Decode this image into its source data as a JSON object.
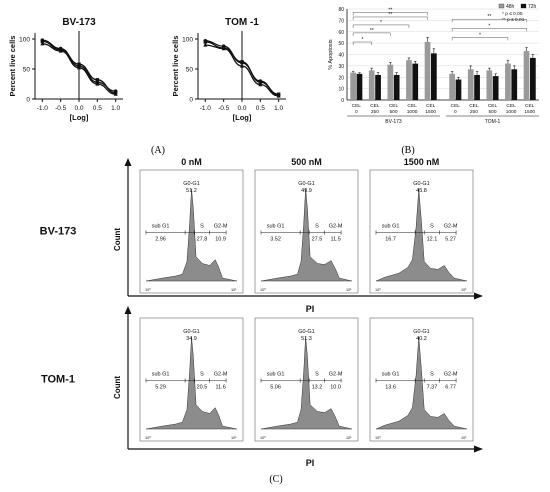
{
  "panel_labels": {
    "a": "(A)",
    "b": "(B)",
    "c": "(C)"
  },
  "chart_data": [
    {
      "type": "line",
      "title": "BV-173",
      "xlabel": "[Log]",
      "ylabel": "Percent live cells",
      "xticks": [
        "-1.0",
        "-0.5",
        "0.0",
        "0.5",
        "1.0"
      ],
      "yticks": [
        "0",
        "50",
        "100"
      ],
      "xlim": [
        -1.2,
        1.2
      ],
      "ylim": [
        0,
        110
      ],
      "series": [
        {
          "x": [
            -1.0,
            -0.5,
            0.0,
            0.5,
            1.0
          ],
          "y": [
            98,
            84,
            55,
            28,
            13
          ]
        },
        {
          "x": [
            -1.0,
            -0.5,
            0.0,
            0.5,
            1.0
          ],
          "y": [
            96,
            82,
            58,
            32,
            10
          ]
        },
        {
          "x": [
            -1.0,
            -0.5,
            0.0,
            0.5,
            1.0
          ],
          "y": [
            92,
            80,
            52,
            25,
            8
          ]
        }
      ]
    },
    {
      "type": "line",
      "title": "TOM -1",
      "xlabel": "[Log]",
      "ylabel": "Percent live cells",
      "xticks": [
        "-1.0",
        "-0.5",
        "0.0",
        "0.5",
        "1.0"
      ],
      "yticks": [
        "0",
        "50",
        "100"
      ],
      "xlim": [
        -1.2,
        1.2
      ],
      "ylim": [
        0,
        110
      ],
      "series": [
        {
          "x": [
            -1.0,
            -0.5,
            0.0,
            0.5,
            1.0
          ],
          "y": [
            97,
            88,
            60,
            30,
            6
          ]
        },
        {
          "x": [
            -1.0,
            -0.5,
            0.0,
            0.5,
            1.0
          ],
          "y": [
            95,
            85,
            62,
            28,
            8
          ]
        },
        {
          "x": [
            -1.0,
            -0.5,
            0.0,
            0.5,
            1.0
          ],
          "y": [
            90,
            84,
            55,
            24,
            5
          ]
        }
      ]
    },
    {
      "type": "bar",
      "ylabel": "% Apoptosis",
      "ylim": [
        0,
        80
      ],
      "yticks": [
        "0",
        "10",
        "20",
        "30",
        "40",
        "50",
        "60",
        "70",
        "80"
      ],
      "categories": [
        "CEL 0",
        "CEL 250",
        "CEL 500",
        "CEL 1000",
        "CEL 1500",
        "CEL 0",
        "CEL 250",
        "CEL 500",
        "CEL 1000",
        "CEL 1500"
      ],
      "groups": [
        {
          "label": "BV-173",
          "from": 0,
          "to": 4
        },
        {
          "label": "TOM-1",
          "from": 5,
          "to": 9
        }
      ],
      "legend": {
        "position": "top-right",
        "significance": [
          "* p ≤ 0.05",
          "** p ≤ 0.01"
        ]
      },
      "series": [
        {
          "name": "48h",
          "color": "#9a9a9a",
          "values": [
            24,
            26,
            31,
            35,
            51,
            23,
            27,
            26,
            32,
            43
          ],
          "errors": [
            1,
            2,
            2,
            2,
            4,
            2,
            3,
            2,
            3,
            3
          ]
        },
        {
          "name": "72h",
          "color": "#111111",
          "values": [
            23,
            22,
            22,
            32,
            41,
            18,
            22,
            21,
            27,
            37
          ],
          "errors": [
            1,
            2,
            2,
            2,
            4,
            2,
            3,
            2,
            3,
            3
          ]
        }
      ],
      "brackets": [
        {
          "from": 0,
          "to": 1,
          "label": "*"
        },
        {
          "from": 0,
          "to": 2,
          "label": "**"
        },
        {
          "from": 0,
          "to": 3,
          "label": "*"
        },
        {
          "from": 0,
          "to": 4,
          "label": "**"
        },
        {
          "from": 0,
          "to": 4,
          "label": "**"
        },
        {
          "from": 5,
          "to": 8,
          "label": "*"
        },
        {
          "from": 5,
          "to": 9,
          "label": "*"
        },
        {
          "from": 5,
          "to": 9,
          "label": "**"
        }
      ]
    }
  ],
  "flow": {
    "x_axis_label": "PI",
    "y_axis_label": "Count",
    "columns": [
      "0 nM",
      "500 nM",
      "1500 nM"
    ],
    "rows": [
      {
        "label": "BV-173",
        "panels": [
          {
            "g0g1": "51.2",
            "subg1": "2.96",
            "s": "27.8",
            "g2m": "10.9"
          },
          {
            "g0g1": "49.9",
            "subg1": "3.52",
            "s": "27.5",
            "g2m": "11.5"
          },
          {
            "g0g1": "45.8",
            "subg1": "16.7",
            "s": "12.1",
            "g2m": "5.27"
          }
        ]
      },
      {
        "label": "TOM-1",
        "panels": [
          {
            "g0g1": "34.9",
            "subg1": "5.29",
            "s": "20.5",
            "g2m": "11.6"
          },
          {
            "g0g1": "51.3",
            "subg1": "5.06",
            "s": "13.2",
            "g2m": "10.0"
          },
          {
            "g0g1": "40.2",
            "subg1": "13.6",
            "s": "7.37",
            "g2m": "6.77"
          }
        ]
      }
    ],
    "gate_labels": {
      "g0g1": "G0-G1",
      "subg1": "sub G1",
      "s": "S",
      "g2m": "G2-M"
    },
    "axis_ticks": [
      "10⁰",
      "10¹"
    ]
  }
}
